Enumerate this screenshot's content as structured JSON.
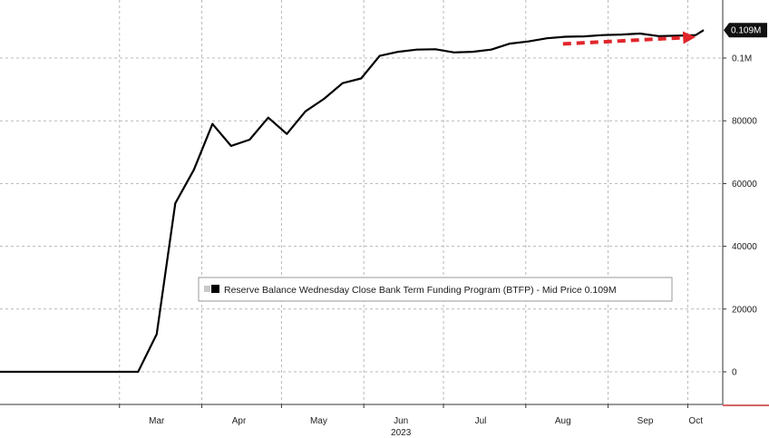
{
  "chart_data": {
    "type": "line",
    "legend": {
      "label": "Reserve Balance Wednesday Close Bank Term Funding Program (BTFP) - Mid Price 0.109M",
      "placement": "lower-center"
    },
    "last_value_label": "0.109M",
    "x_axis": {
      "range": [
        "2023-01-15",
        "2023-10-07"
      ],
      "ticks": [
        {
          "date": "2023-03-15",
          "label": "Mar"
        },
        {
          "date": "2023-04-15",
          "label": "Apr"
        },
        {
          "date": "2023-05-15",
          "label": "May"
        },
        {
          "date": "2023-06-15",
          "label": "Jun"
        },
        {
          "date": "2023-07-15",
          "label": "Jul"
        },
        {
          "date": "2023-08-15",
          "label": "Aug"
        },
        {
          "date": "2023-09-15",
          "label": "Sep"
        },
        {
          "date": "2023-10-04",
          "label": "Oct"
        }
      ],
      "year_label": "2023",
      "gridlines_at": [
        "2023-03-01",
        "2023-04-01",
        "2023-05-01",
        "2023-06-01",
        "2023-07-01",
        "2023-08-01",
        "2023-09-01",
        "2023-10-01"
      ]
    },
    "y_axis": {
      "range": [
        -10000,
        117000
      ],
      "ticks": [
        {
          "value": 0,
          "label": "0"
        },
        {
          "value": 20000,
          "label": "20000"
        },
        {
          "value": 40000,
          "label": "40000"
        },
        {
          "value": 60000,
          "label": "60000"
        },
        {
          "value": 80000,
          "label": "80000"
        },
        {
          "value": 100000,
          "label": "0.1M"
        }
      ]
    },
    "grid": true,
    "annotation": {
      "type": "dashed-arrow",
      "color": "#e0262b",
      "from": {
        "x": "2023-08-15",
        "y": 104500
      },
      "to": {
        "x": "2023-10-04",
        "y": 106700
      }
    },
    "series": [
      {
        "color": "#000000",
        "points": [
          {
            "x": "2023-01-15",
            "y": 0
          },
          {
            "x": "2023-03-08",
            "y": 0
          },
          {
            "x": "2023-03-15",
            "y": 12000
          },
          {
            "x": "2023-03-22",
            "y": 53700
          },
          {
            "x": "2023-03-29",
            "y": 64400
          },
          {
            "x": "2023-04-05",
            "y": 79000
          },
          {
            "x": "2023-04-12",
            "y": 72000
          },
          {
            "x": "2023-04-19",
            "y": 74000
          },
          {
            "x": "2023-04-26",
            "y": 81000
          },
          {
            "x": "2023-05-03",
            "y": 75800
          },
          {
            "x": "2023-05-10",
            "y": 83000
          },
          {
            "x": "2023-05-17",
            "y": 87000
          },
          {
            "x": "2023-05-24",
            "y": 92000
          },
          {
            "x": "2023-05-31",
            "y": 93500
          },
          {
            "x": "2023-06-07",
            "y": 100700
          },
          {
            "x": "2023-06-14",
            "y": 102000
          },
          {
            "x": "2023-06-21",
            "y": 102700
          },
          {
            "x": "2023-06-28",
            "y": 102800
          },
          {
            "x": "2023-07-05",
            "y": 101800
          },
          {
            "x": "2023-07-12",
            "y": 102000
          },
          {
            "x": "2023-07-19",
            "y": 102700
          },
          {
            "x": "2023-07-26",
            "y": 104600
          },
          {
            "x": "2023-08-02",
            "y": 105300
          },
          {
            "x": "2023-08-09",
            "y": 106300
          },
          {
            "x": "2023-08-16",
            "y": 106800
          },
          {
            "x": "2023-08-23",
            "y": 106900
          },
          {
            "x": "2023-08-30",
            "y": 107300
          },
          {
            "x": "2023-09-06",
            "y": 107500
          },
          {
            "x": "2023-09-13",
            "y": 107800
          },
          {
            "x": "2023-09-20",
            "y": 107000
          },
          {
            "x": "2023-09-27",
            "y": 107100
          },
          {
            "x": "2023-10-04",
            "y": 107300
          },
          {
            "x": "2023-10-07",
            "y": 108900
          }
        ]
      }
    ]
  }
}
